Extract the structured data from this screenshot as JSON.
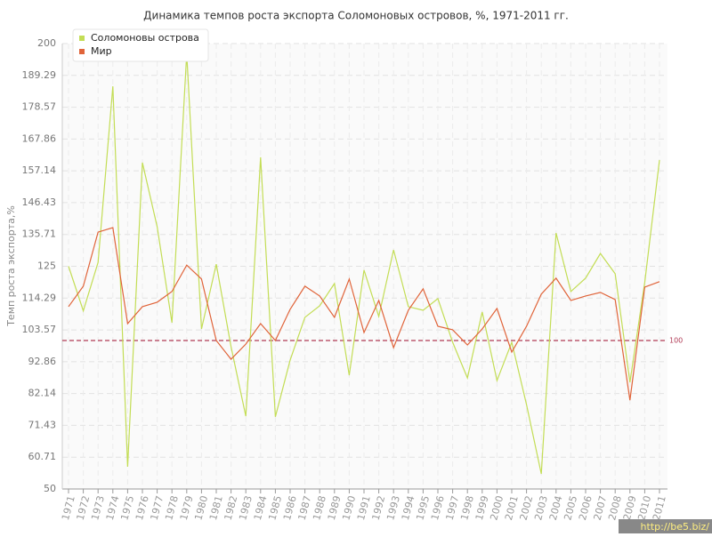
{
  "chart_data": {
    "type": "line",
    "title": "Динамика темпов роста экспорта Соломоновых островов, %, 1971-2011 гг.",
    "y_label": "Темп роста экспорта,%",
    "categories": [
      "1971",
      "1972",
      "1973",
      "1974",
      "1975",
      "1976",
      "1977",
      "1978",
      "1979",
      "1980",
      "1981",
      "1982",
      "1983",
      "1984",
      "1985",
      "1986",
      "1987",
      "1988",
      "1989",
      "1990",
      "1991",
      "1992",
      "1993",
      "1994",
      "1995",
      "1996",
      "1997",
      "1998",
      "1999",
      "2000",
      "2001",
      "2002",
      "2003",
      "2004",
      "2005",
      "2006",
      "2007",
      "2008",
      "2009",
      "2010",
      "2011"
    ],
    "series": [
      {
        "name": "Соломоновы острова",
        "color": "#c3dd55",
        "values": [
          125,
          110,
          126.3,
          185.6,
          57.5,
          159.9,
          138.3,
          106,
          196.7,
          103.9,
          125.7,
          97.9,
          74.5,
          161.7,
          74.3,
          93.4,
          107.8,
          111.7,
          119.2,
          88.3,
          123.7,
          108.1,
          130.5,
          111.4,
          110.2,
          114.1,
          99.4,
          87.4,
          109.6,
          86.5,
          99.4,
          78.4,
          55.1,
          136.2,
          116.5,
          121,
          129.3,
          122.5,
          85.9,
          119.5,
          160.8
        ]
      },
      {
        "name": "Мир",
        "color": "#e0643a",
        "values": [
          111.4,
          118.3,
          136.5,
          138,
          105.7,
          111.4,
          112.9,
          116.5,
          125.4,
          120.7,
          100,
          93.7,
          98.8,
          105.7,
          100,
          110.5,
          118.3,
          115,
          107.8,
          120.7,
          102.7,
          113.5,
          97.6,
          110.2,
          117.4,
          104.8,
          103.6,
          98.5,
          103.9,
          110.8,
          96.1,
          104.8,
          115.6,
          121,
          113.5,
          115,
          116.2,
          113.8,
          79.9,
          118,
          119.8
        ]
      }
    ],
    "ylim": [
      50,
      200
    ],
    "yticks": [
      50,
      60.71,
      71.43,
      82.14,
      92.86,
      103.57,
      114.29,
      125,
      135.71,
      146.43,
      157.14,
      167.86,
      178.57,
      189.29,
      200
    ],
    "grid": true,
    "legend_position": "top-left",
    "reference_line": {
      "value": 100,
      "color": "#b03a55"
    },
    "watermark": "http://be5.biz/"
  }
}
